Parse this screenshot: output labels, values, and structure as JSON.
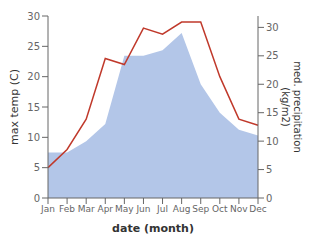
{
  "chart_data": {
    "type": "line",
    "categories": [
      "Jan",
      "Feb",
      "Mar",
      "Apr",
      "May",
      "Jun",
      "Jul",
      "Aug",
      "Sep",
      "Oct",
      "Nov",
      "Dec"
    ],
    "xlabel": "date (month)",
    "ylabel": "max temp (C)",
    "y2label": "med. precipitation\n(kg/m2)",
    "ylim": [
      0,
      30
    ],
    "yticks": [
      0,
      5,
      10,
      15,
      20,
      25,
      30
    ],
    "y2lim": [
      0,
      32
    ],
    "y2ticks": [
      0,
      5,
      10,
      15,
      20,
      25,
      30
    ],
    "grid": false,
    "series": [
      {
        "type": "area",
        "axis": "y2",
        "color": "#b3c6e8",
        "values": [
          8,
          8,
          10,
          13,
          25,
          25,
          26,
          29,
          20,
          15,
          12,
          11
        ]
      },
      {
        "type": "line",
        "axis": "y",
        "color": "#c0392b",
        "values": [
          5,
          8,
          13,
          23,
          22,
          28,
          27,
          29,
          29,
          20,
          13,
          12
        ]
      }
    ]
  }
}
